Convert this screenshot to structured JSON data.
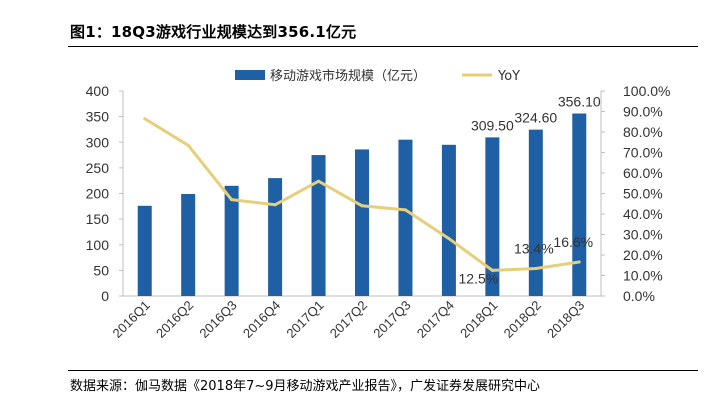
{
  "header": {
    "title": "图1：18Q3游戏行业规模达到356.1亿元"
  },
  "footer": {
    "source": "数据来源：伽马数据《2018年7~9月移动游戏产业报告》，广发证券发展研究中心"
  },
  "chart_data": {
    "type": "bar",
    "categories": [
      "2016Q1",
      "2016Q2",
      "2016Q3",
      "2016Q4",
      "2017Q1",
      "2017Q2",
      "2017Q3",
      "2017Q4",
      "2018Q1",
      "2018Q2",
      "2018Q3"
    ],
    "series": [
      {
        "name": "移动游戏市场规模（亿元）",
        "type": "bar",
        "axis": "left",
        "color": "#1f5fa3",
        "values": [
          176,
          199,
          215,
          230,
          275,
          286,
          305,
          295,
          309.5,
          324.6,
          356.1
        ],
        "labels": [
          "",
          "",
          "",
          "",
          "",
          "",
          "",
          "",
          "309.50",
          "324.60",
          "356.10"
        ]
      },
      {
        "name": "YoY",
        "type": "line",
        "axis": "right",
        "color": "#e7cf7a",
        "values": [
          86.5,
          73.5,
          47,
          44.5,
          56,
          44,
          42,
          28,
          12.5,
          13.4,
          16.6
        ],
        "labels": [
          "",
          "",
          "",
          "",
          "",
          "",
          "",
          "",
          "12.5%",
          "13.4%",
          "16.6%"
        ]
      }
    ],
    "y_left": {
      "ylim": [
        0,
        400
      ],
      "ticks": [
        "0",
        "50",
        "100",
        "150",
        "200",
        "250",
        "300",
        "350",
        "400"
      ]
    },
    "y_right": {
      "ylim": [
        0,
        100
      ],
      "ticks": [
        "0.0%",
        "10.0%",
        "20.0%",
        "30.0%",
        "40.0%",
        "50.0%",
        "60.0%",
        "70.0%",
        "80.0%",
        "90.0%",
        "100.0%"
      ]
    },
    "legend": "top",
    "grid": false
  }
}
